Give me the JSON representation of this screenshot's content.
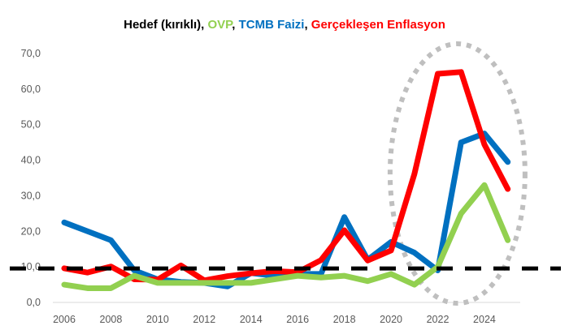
{
  "chart_data": {
    "type": "line",
    "title_parts": [
      {
        "text": "Hedef (kırıklı)",
        "color": "#000000"
      },
      {
        "text": ", ",
        "color": "#000000"
      },
      {
        "text": "OVP",
        "color": "#92D050"
      },
      {
        "text": ", ",
        "color": "#000000"
      },
      {
        "text": "TCMB Faizi",
        "color": "#0070C0"
      },
      {
        "text": ", ",
        "color": "#000000"
      },
      {
        "text": "Gerçekleşen Enflasyon",
        "color": "#FF0000"
      }
    ],
    "x": [
      2006,
      2007,
      2008,
      2009,
      2010,
      2011,
      2012,
      2013,
      2014,
      2015,
      2016,
      2017,
      2018,
      2019,
      2020,
      2021,
      2022,
      2023,
      2024,
      2025
    ],
    "x_tick_labels": [
      "2006",
      "2008",
      "2010",
      "2012",
      "2014",
      "2016",
      "2018",
      "2020",
      "2022",
      "2024"
    ],
    "y_tick_labels": [
      "0,0",
      "10,0",
      "20,0",
      "30,0",
      "40,0",
      "50,0",
      "60,0",
      "70,0"
    ],
    "ylim": [
      0,
      70
    ],
    "grid": false,
    "series": [
      {
        "name": "TCMB Faizi",
        "color": "#0070C0",
        "values": [
          22.5,
          20,
          17.5,
          9,
          6.5,
          5.75,
          5.5,
          4.5,
          8.25,
          7.5,
          8,
          8,
          24,
          12,
          17,
          14,
          9,
          45,
          47.5,
          39.5
        ]
      },
      {
        "name": "Gerçekleşen Enflasyon",
        "color": "#FF0000",
        "values": [
          9.6,
          8.4,
          10.1,
          6.5,
          6.4,
          10.4,
          6.2,
          7.4,
          8.2,
          8.8,
          8.5,
          11.9,
          20.3,
          11.8,
          14.6,
          36.1,
          64.3,
          64.8,
          44.4,
          31.9
        ]
      },
      {
        "name": "OVP",
        "color": "#92D050",
        "values": [
          5,
          4,
          4,
          7.5,
          5.5,
          5.5,
          5.5,
          5.5,
          5.5,
          6.5,
          7.5,
          7,
          7.5,
          6,
          8,
          5,
          10,
          25,
          33,
          17.5
        ]
      },
      {
        "name": "Hedef (kırıklı)",
        "color": "#000000",
        "dashed": true,
        "values": [
          5,
          5,
          5,
          5,
          5,
          5,
          5,
          5,
          5,
          5,
          5,
          5,
          5,
          5,
          5,
          5,
          5,
          5,
          5,
          5
        ]
      }
    ],
    "annotation": {
      "type": "dotted-ellipse",
      "color": "#BFBFBF",
      "x_range": [
        2020,
        2025
      ]
    }
  }
}
